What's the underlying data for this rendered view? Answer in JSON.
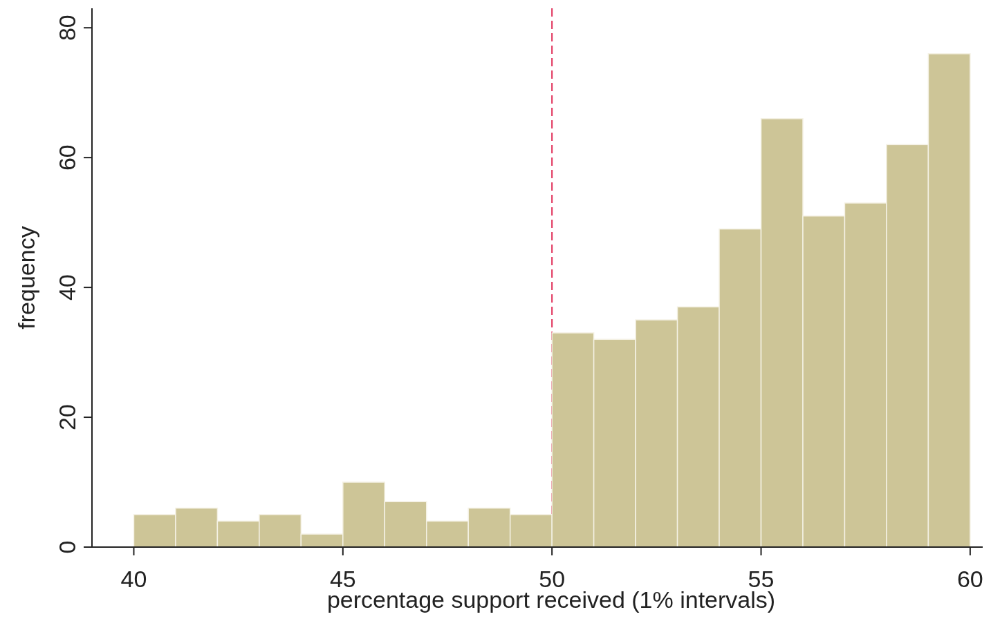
{
  "chart_data": {
    "type": "histogram",
    "xlabel": "percentage support received (1% intervals)",
    "ylabel": "frequency",
    "bins": [
      40,
      41,
      42,
      43,
      44,
      45,
      46,
      47,
      48,
      49,
      50,
      51,
      52,
      53,
      54,
      55,
      56,
      57,
      58,
      59,
      60
    ],
    "values": [
      5,
      6,
      4,
      5,
      2,
      10,
      7,
      4,
      6,
      5,
      33,
      32,
      35,
      37,
      49,
      66,
      51,
      53,
      62,
      76
    ],
    "color": "#cdc597",
    "xlim": [
      39,
      60.3
    ],
    "xticks": [
      40,
      45,
      50,
      55,
      60
    ],
    "ylim": [
      0,
      83
    ],
    "yticks": [
      0,
      20,
      40,
      60,
      80
    ],
    "grid": false,
    "ref_lines": [
      {
        "axis": "x",
        "value": 50,
        "color": "#e0305a",
        "line_style": "dashed"
      }
    ]
  }
}
